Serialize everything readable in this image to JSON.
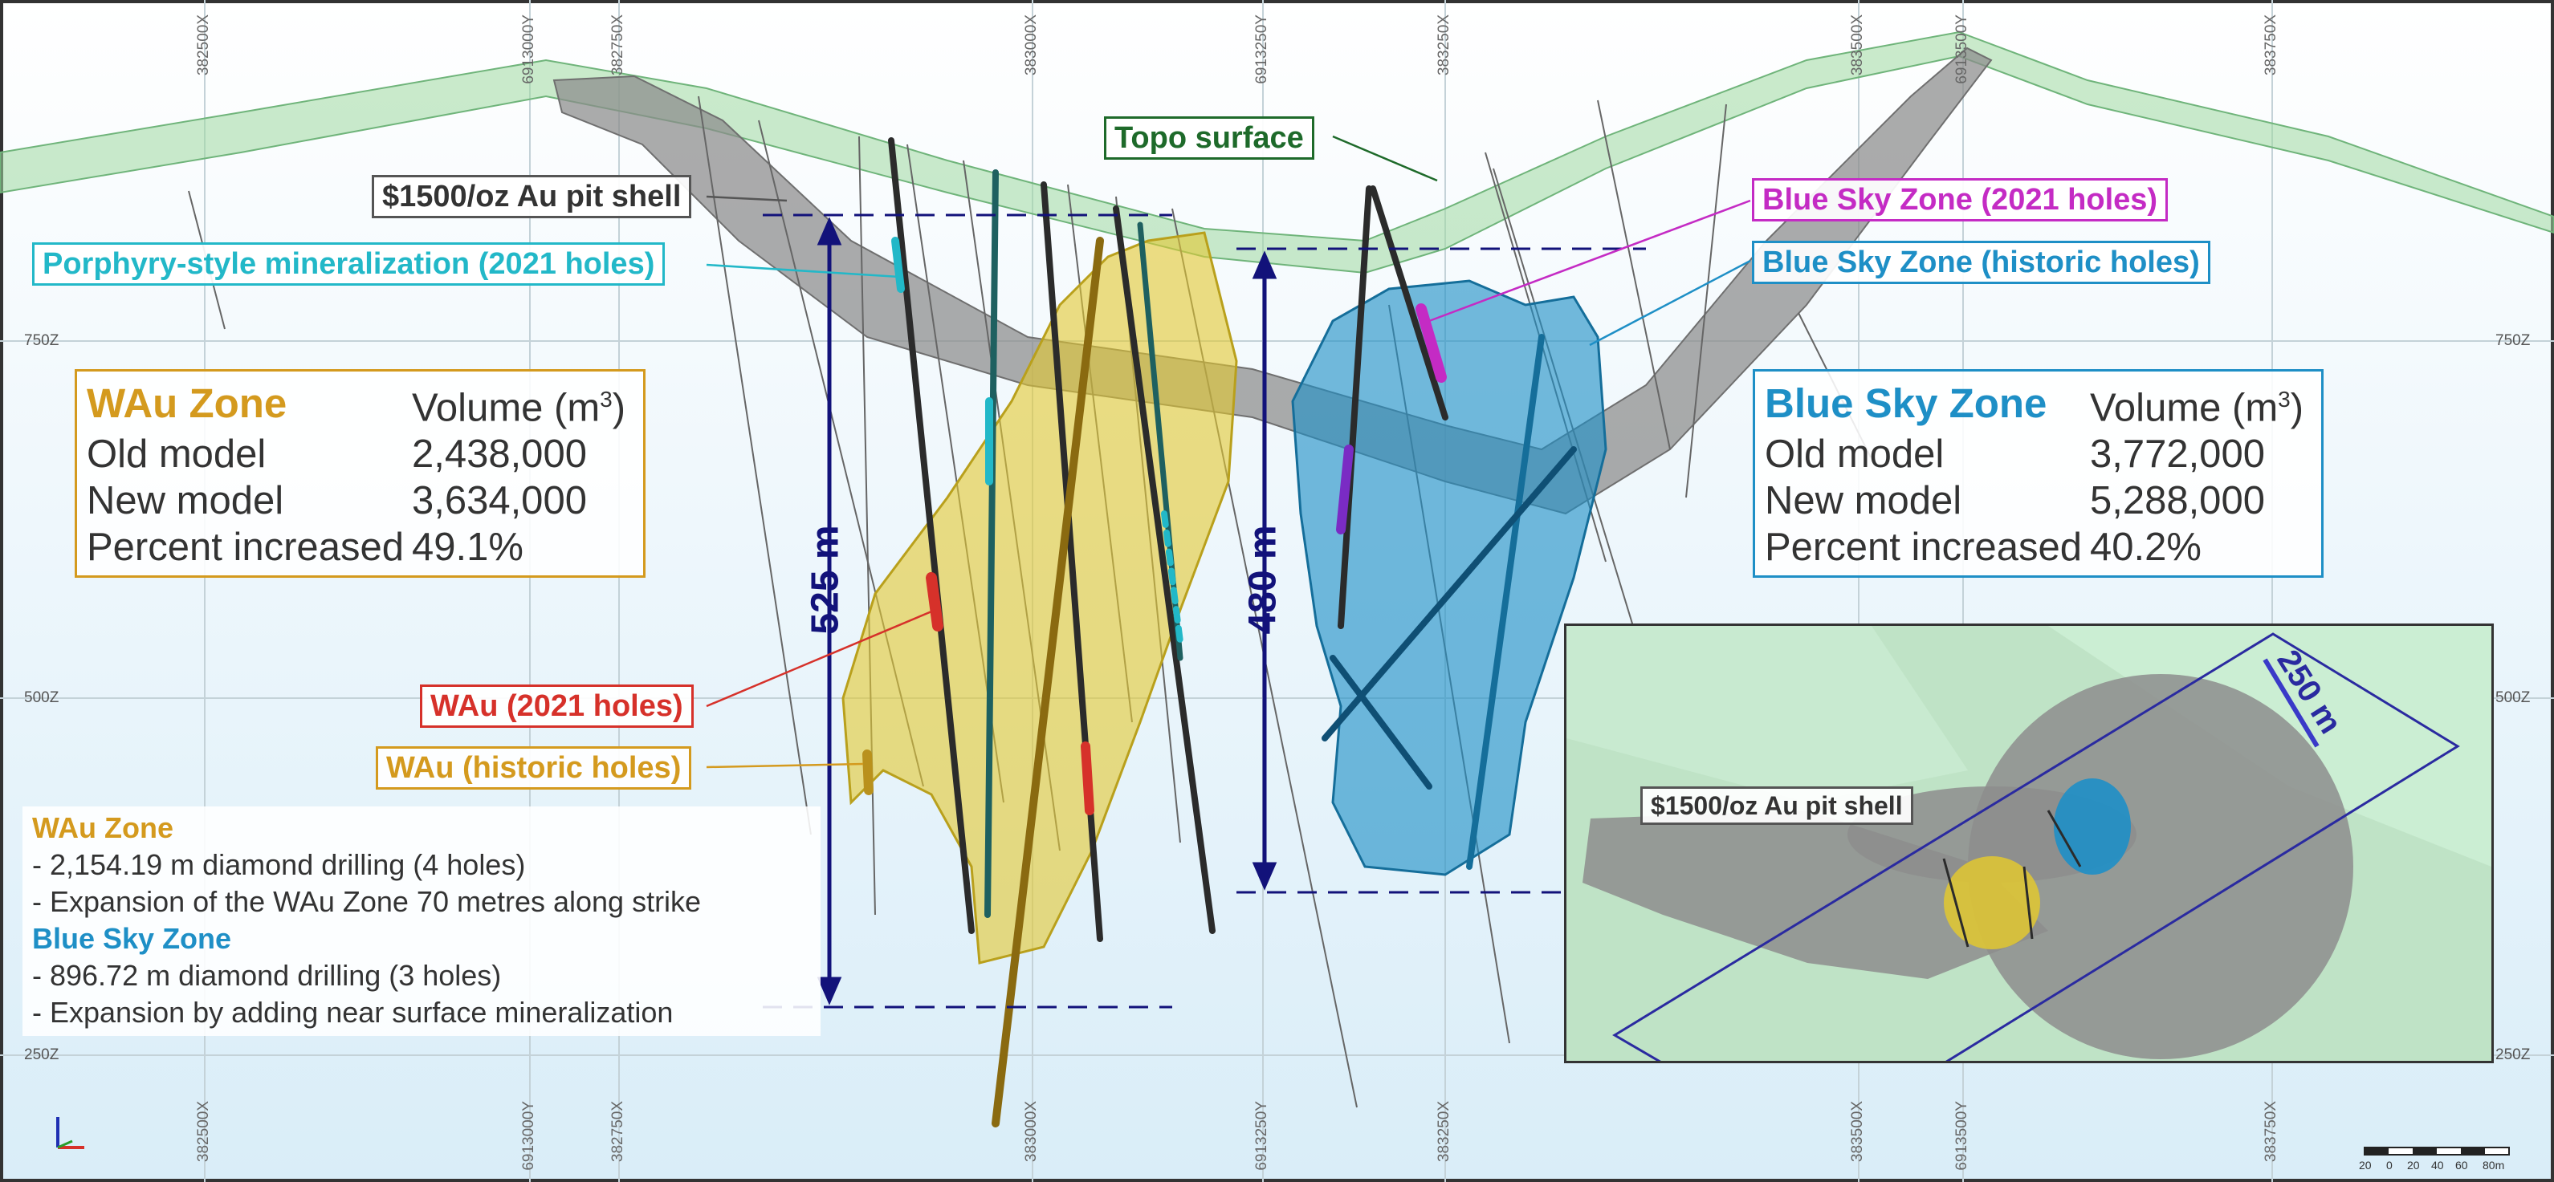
{
  "colors": {
    "topo": "#8fcf8f",
    "pit_shell": "#8a8a8a",
    "wau": "#e2c830",
    "blue_sky": "#1e8fc6",
    "magenta": "#c42bc4",
    "cyan": "#22b8c8",
    "red": "#d6312a",
    "navy": "#12127a",
    "wau_title": "#d49a1e",
    "bluesky_title": "#1e8fc6"
  },
  "grid": {
    "top_labels": [
      "382500X",
      "6913000Y",
      "382750X",
      "383000X",
      "6913250Y",
      "383250X",
      "383500X",
      "6913500Y",
      "383750X"
    ],
    "bottom_labels": [
      "382500X",
      "6913000Y",
      "382750X",
      "383000X",
      "6913250Y",
      "383250X",
      "383500X",
      "6913500Y",
      "383750X"
    ],
    "z_left": [
      "750Z",
      "500Z",
      "250Z"
    ],
    "z_right": [
      "750Z",
      "500Z",
      "250Z"
    ]
  },
  "labels": {
    "topo_surface": "Topo surface",
    "pit_shell": "$1500/oz Au pit shell",
    "porphyry": "Porphyry-style  mineralization (2021 holes)",
    "blue_sky_2021": "Blue Sky Zone (2021 holes)",
    "blue_sky_historic": "Blue Sky Zone (historic holes)",
    "wau_2021": "WAu (2021 holes)",
    "wau_historic": "WAu (historic holes)",
    "dim_525": "525 m",
    "dim_480": "480 m"
  },
  "wau_table": {
    "title": "WAu Zone",
    "header": "Volume (m",
    "superscript": "3",
    "header_close": ")",
    "rows": [
      {
        "label": "Old model",
        "value": "2,438,000"
      },
      {
        "label": "New model",
        "value": "3,634,000"
      },
      {
        "label": "Percent increased",
        "value": "49.1%"
      }
    ]
  },
  "bluesky_table": {
    "title": "Blue Sky Zone",
    "header": "Volume (m",
    "superscript": "3",
    "header_close": ")",
    "rows": [
      {
        "label": "Old model",
        "value": "3,772,000"
      },
      {
        "label": "New model",
        "value": "5,288,000"
      },
      {
        "label": "Percent increased",
        "value": "40.2%"
      }
    ]
  },
  "notes": {
    "wau_heading": "WAu Zone",
    "wau_line1": "- 2,154.19 m diamond drilling (4 holes)",
    "wau_line2": "- Expansion of the WAu Zone 70 metres along strike",
    "bluesky_heading": "Blue Sky Zone",
    "bluesky_line1": "- 896.72 m diamond drilling (3 holes)",
    "bluesky_line2": "- Expansion by adding near surface mineralization"
  },
  "inset": {
    "pit_label": "$1500/oz Au pit shell",
    "width_label": "250 m"
  },
  "scale_bar": {
    "ticks": [
      "20",
      "0",
      "20",
      "40",
      "60",
      "80m"
    ]
  }
}
